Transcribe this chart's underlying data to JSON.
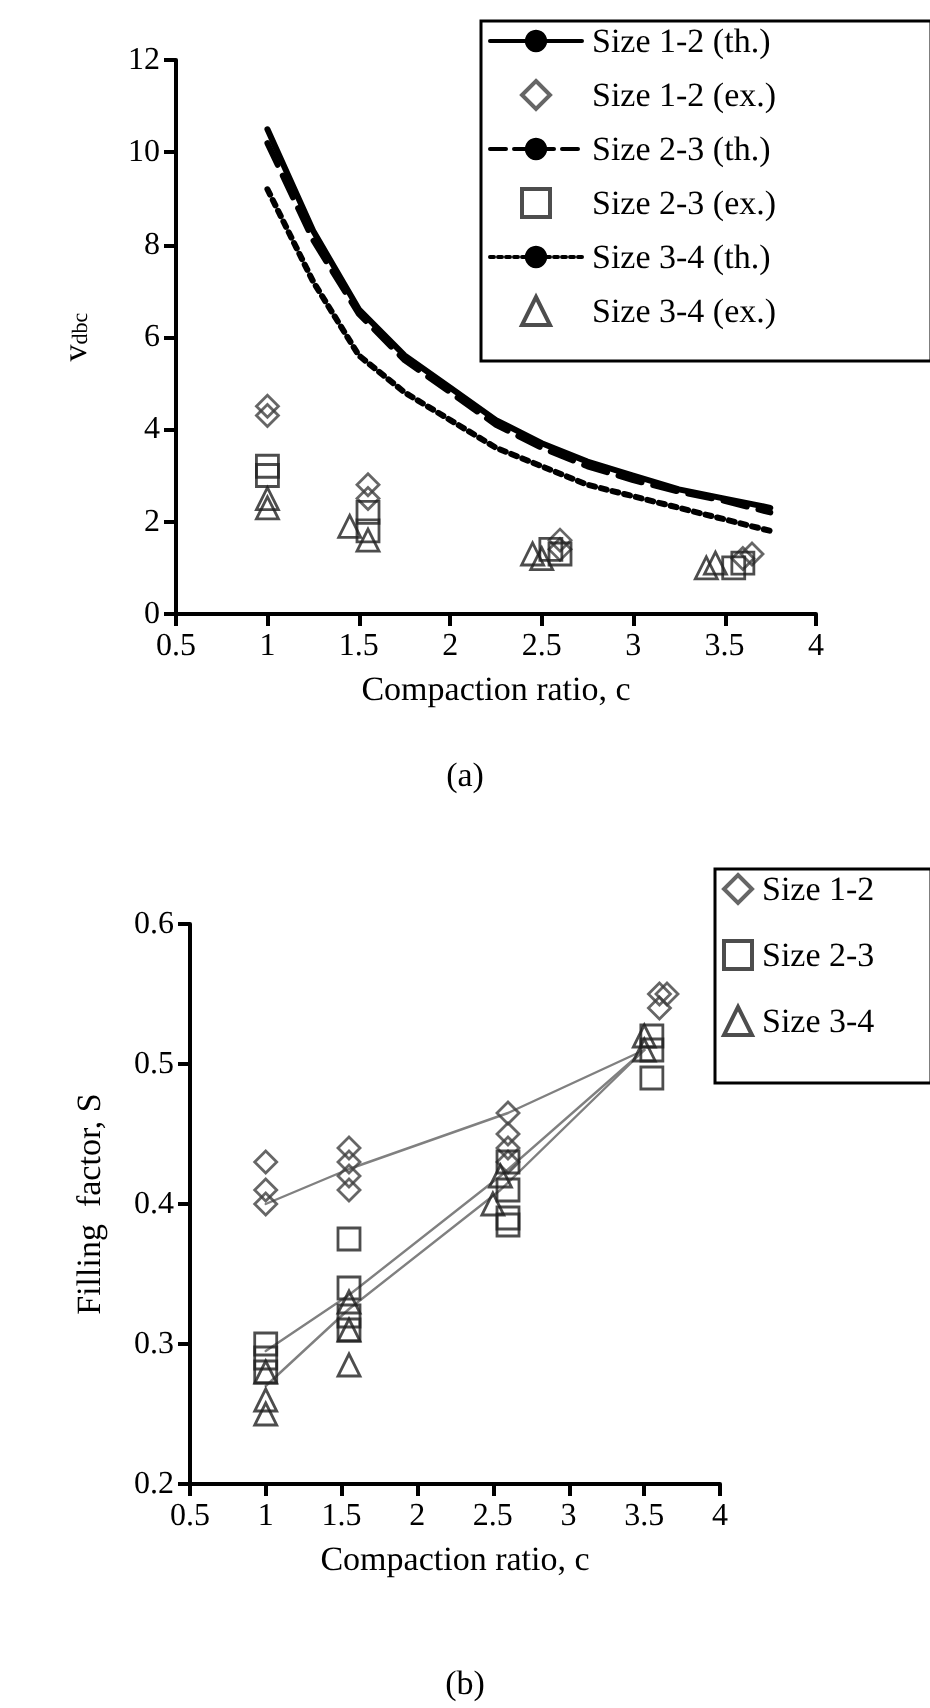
{
  "chart_data": [
    {
      "type": "scatter",
      "xlabel": "Compaction ratio, c",
      "ylabel": "v$_{dbc}$",
      "xlim": [
        0.5,
        4
      ],
      "ylim": [
        0,
        12
      ],
      "xticks": [
        0.5,
        1,
        1.5,
        2,
        2.5,
        3,
        3.5,
        4
      ],
      "yticks": [
        0,
        2,
        4,
        6,
        8,
        10,
        12
      ],
      "grid": false,
      "legend": "top right",
      "annotations": [
        "(a)"
      ],
      "series": [
        {
          "name": "Size 1-2 (th.)",
          "type": "line",
          "marker": "none",
          "line_style": "solid",
          "color": "#000000",
          "x": [
            1,
            1.25,
            1.5,
            1.75,
            2,
            2.25,
            2.5,
            2.75,
            3,
            3.25,
            3.5,
            3.75
          ],
          "values": [
            10.5,
            8.3,
            6.6,
            5.6,
            4.9,
            4.2,
            3.7,
            3.3,
            3.0,
            2.7,
            2.5,
            2.3
          ]
        },
        {
          "name": "Size 1-2 (ex.)",
          "marker": "diamond",
          "color": "#404040",
          "x": [
            1,
            1,
            1.55,
            1.55,
            2.6,
            2.6,
            3.65,
            3.6
          ],
          "values": [
            4.5,
            4.3,
            2.8,
            2.5,
            1.6,
            1.4,
            1.3,
            1.2
          ]
        },
        {
          "name": "Size 2-3 (th.)",
          "type": "line",
          "marker": "none",
          "line_style": "dashed",
          "color": "#000000",
          "x": [
            1,
            1.25,
            1.5,
            1.75,
            2,
            2.25,
            2.5,
            2.75,
            3,
            3.25,
            3.5,
            3.75
          ],
          "values": [
            10.2,
            8.1,
            6.5,
            5.5,
            4.8,
            4.1,
            3.6,
            3.2,
            2.9,
            2.65,
            2.45,
            2.2
          ]
        },
        {
          "name": "Size 2-3 (ex.)",
          "marker": "square",
          "color": "#202020",
          "x": [
            1,
            1,
            1.55,
            1.55,
            2.55,
            2.6,
            3.6,
            3.55
          ],
          "values": [
            3.2,
            3.0,
            2.2,
            1.8,
            1.4,
            1.3,
            1.1,
            1.0
          ]
        },
        {
          "name": "Size 3-4 (th.)",
          "type": "line",
          "marker": "none",
          "line_style": "dotted",
          "color": "#000000",
          "x": [
            1,
            1.25,
            1.5,
            1.75,
            2,
            2.25,
            2.5,
            2.75,
            3,
            3.25,
            3.5,
            3.75
          ],
          "values": [
            9.2,
            7.2,
            5.6,
            4.8,
            4.2,
            3.6,
            3.2,
            2.8,
            2.55,
            2.3,
            2.05,
            1.8
          ]
        },
        {
          "name": "Size 3-4 (ex.)",
          "marker": "triangle",
          "color": "#202020",
          "x": [
            1,
            1,
            1.45,
            1.55,
            2.45,
            2.5,
            3.4,
            3.45
          ],
          "values": [
            2.5,
            2.3,
            1.9,
            1.6,
            1.3,
            1.2,
            1.0,
            1.1
          ]
        }
      ]
    },
    {
      "type": "scatter",
      "xlabel": "Compaction ratio, c",
      "ylabel": "Filling  factor, S",
      "xlim": [
        0.5,
        4
      ],
      "ylim": [
        0.2,
        0.6
      ],
      "xticks": [
        0.5,
        1,
        1.5,
        2,
        2.5,
        3,
        3.5,
        4
      ],
      "yticks": [
        0.2,
        0.3,
        0.4,
        0.5,
        0.6
      ],
      "grid": false,
      "legend": "top right",
      "annotations": [
        "(b)"
      ],
      "series": [
        {
          "type": "line",
          "marker": "none",
          "line_style": "solid",
          "color": "#808080",
          "x": [
            1,
            1.55,
            2.6,
            3.5
          ],
          "values": [
            0.4,
            0.425,
            0.465,
            0.51
          ]
        },
        {
          "type": "line",
          "marker": "none",
          "line_style": "solid",
          "color": "#808080",
          "x": [
            1,
            1.55,
            2.55,
            3.5
          ],
          "values": [
            0.295,
            0.335,
            0.42,
            0.51
          ]
        },
        {
          "type": "line",
          "marker": "none",
          "line_style": "solid",
          "color": "#808080",
          "x": [
            1,
            1.55,
            2.55,
            3.5
          ],
          "values": [
            0.27,
            0.325,
            0.41,
            0.51
          ]
        },
        {
          "name": "Size 1-2",
          "marker": "diamond",
          "color": "#404040",
          "x": [
            1,
            1,
            1,
            1.55,
            1.55,
            1.55,
            1.55,
            2.6,
            2.6,
            2.6,
            2.6,
            3.6,
            3.65,
            3.6
          ],
          "values": [
            0.43,
            0.41,
            0.4,
            0.44,
            0.43,
            0.42,
            0.41,
            0.465,
            0.45,
            0.44,
            0.43,
            0.55,
            0.55,
            0.54
          ]
        },
        {
          "name": "Size 2-3",
          "marker": "square",
          "color": "#202020",
          "x": [
            1,
            1,
            1,
            1.55,
            1.55,
            1.55,
            1.55,
            2.6,
            2.6,
            2.6,
            2.6,
            3.55,
            3.55,
            3.55
          ],
          "values": [
            0.3,
            0.29,
            0.28,
            0.375,
            0.34,
            0.32,
            0.31,
            0.43,
            0.41,
            0.39,
            0.385,
            0.52,
            0.51,
            0.49
          ]
        },
        {
          "name": "Size 3-4",
          "marker": "triangle",
          "color": "#202020",
          "x": [
            1,
            1,
            1,
            1.55,
            1.55,
            1.55,
            2.5,
            2.55,
            3.5,
            3.5
          ],
          "values": [
            0.28,
            0.26,
            0.25,
            0.33,
            0.31,
            0.285,
            0.4,
            0.42,
            0.52,
            0.51
          ]
        }
      ]
    }
  ]
}
